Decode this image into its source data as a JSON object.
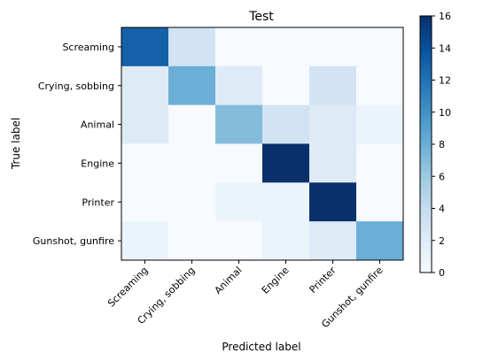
{
  "chart_data": {
    "type": "heatmap",
    "title": "Test",
    "xlabel": "Predicted label",
    "ylabel": "True label",
    "x_categories": [
      "Screaming",
      "Crying, sobbing",
      "Animal",
      "Engine",
      "Printer",
      "Gunshot, gunfire"
    ],
    "y_categories": [
      "Screaming",
      "Crying, sobbing",
      "Animal",
      "Engine",
      "Printer",
      "Gunshot, gunfire"
    ],
    "values": [
      [
        13,
        3,
        0,
        0,
        0,
        0
      ],
      [
        2,
        8,
        2,
        0,
        3,
        0
      ],
      [
        2,
        0,
        7,
        3,
        2,
        1
      ],
      [
        0,
        0,
        0,
        16,
        2,
        0
      ],
      [
        0,
        0,
        1,
        1,
        16,
        0
      ],
      [
        1,
        0,
        0,
        1,
        2,
        8
      ]
    ],
    "colorbar": {
      "min": 0,
      "max": 16,
      "ticks": [
        0,
        2,
        4,
        6,
        8,
        10,
        12,
        14,
        16
      ]
    },
    "colormap": "Blues",
    "grid": false
  }
}
